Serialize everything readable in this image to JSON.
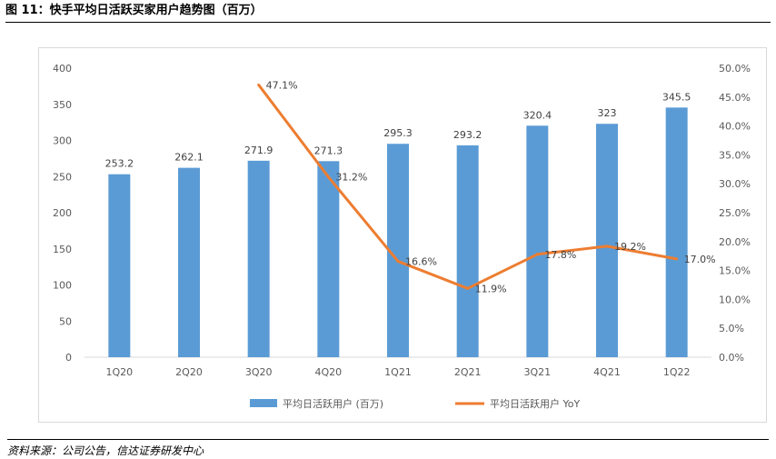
{
  "figure": {
    "title": "图 11：快手平均日活跃买家用户趋势图（百万）",
    "source": "资料来源：公司公告，信达证券研发中心"
  },
  "colors": {
    "bar": "#5b9bd5",
    "line": "#ed7d31",
    "axis_text": "#595959",
    "grid": "#d9d9d9"
  },
  "chart_data": {
    "type": "bar",
    "categories": [
      "1Q20",
      "2Q20",
      "3Q20",
      "4Q20",
      "1Q21",
      "2Q21",
      "3Q21",
      "4Q21",
      "1Q22"
    ],
    "series": [
      {
        "name": "平均日活跃用户 (百万)",
        "type": "bar",
        "axis": "left",
        "values": [
          253.2,
          262.1,
          271.9,
          271.3,
          295.3,
          293.2,
          320.4,
          323,
          345.5
        ],
        "labels": [
          "253.2",
          "262.1",
          "271.9",
          "271.3",
          "295.3",
          "293.2",
          "320.4",
          "323",
          "345.5"
        ]
      },
      {
        "name": "平均日活跃用户 YoY",
        "type": "line",
        "axis": "right",
        "values": [
          null,
          null,
          47.1,
          31.2,
          16.6,
          11.9,
          17.8,
          19.2,
          17.0
        ],
        "labels": [
          "",
          "",
          "47.1%",
          "31.2%",
          "16.6%",
          "11.9%",
          "17.8%",
          "19.2%",
          "17.0%"
        ]
      }
    ],
    "y_left": {
      "min": 0,
      "max": 400,
      "ticks": [
        "0",
        "50",
        "100",
        "150",
        "200",
        "250",
        "300",
        "350",
        "400"
      ]
    },
    "y_right": {
      "min": 0,
      "max": 50,
      "ticks": [
        "0.0%",
        "5.0%",
        "10.0%",
        "15.0%",
        "20.0%",
        "25.0%",
        "30.0%",
        "35.0%",
        "40.0%",
        "45.0%",
        "50.0%"
      ]
    },
    "grid": false,
    "legend": "bottom"
  }
}
